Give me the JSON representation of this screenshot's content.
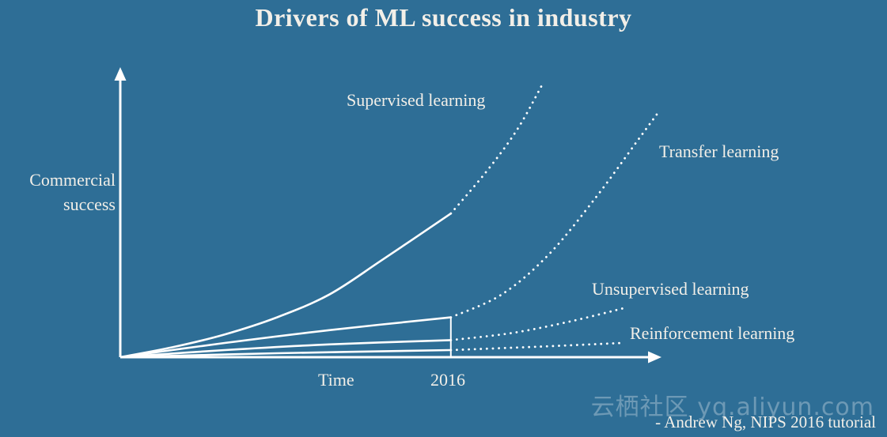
{
  "title": "Drivers of ML success in industry",
  "axes": {
    "x_label": "Time",
    "x_tick": "2016",
    "y_label": "Commercial success"
  },
  "attribution": "- Andrew Ng, NIPS 2016 tutorial",
  "watermark": "云栖社区 yq.aliyun.com",
  "colors": {
    "background": "#2e6e96",
    "text": "#f2efe8",
    "line": "#ffffff"
  },
  "chart_data": {
    "type": "line",
    "title": "Drivers of ML success in industry",
    "xlabel": "Time",
    "ylabel": "Commercial success",
    "x_tick_labels": [
      "2016"
    ],
    "x_tick_positions": [
      6.33
    ],
    "xlim": [
      0,
      10.3
    ],
    "ylim": [
      0,
      10
    ],
    "grid": false,
    "legend_position": "inline-labels",
    "note": "Conceptual sketch: solid = history up to 2016, dotted = projected after 2016; units are relative (0-10).",
    "series": [
      {
        "name": "Supervised learning",
        "id": "supervised-learning",
        "solid": [
          [
            0,
            0
          ],
          [
            1,
            0.35
          ],
          [
            2,
            0.8
          ],
          [
            3,
            1.4
          ],
          [
            4,
            2.2
          ],
          [
            5,
            3.4
          ],
          [
            6.33,
            5.05
          ]
        ],
        "dotted": [
          [
            6.33,
            5.05
          ],
          [
            7,
            6.5
          ],
          [
            7.6,
            8.0
          ],
          [
            8.1,
            9.65
          ]
        ]
      },
      {
        "name": "Transfer learning",
        "id": "transfer-learning",
        "solid": [
          [
            0,
            0
          ],
          [
            2,
            0.5
          ],
          [
            4,
            0.95
          ],
          [
            6.33,
            1.4
          ]
        ],
        "dotted": [
          [
            6.33,
            1.4
          ],
          [
            7.3,
            2.2
          ],
          [
            8.2,
            3.6
          ],
          [
            9.1,
            5.6
          ],
          [
            9.9,
            7.6
          ],
          [
            10.3,
            8.6
          ]
        ]
      },
      {
        "name": "Unsupervised learning",
        "id": "unsupervised-learning",
        "solid": [
          [
            0,
            0
          ],
          [
            2,
            0.25
          ],
          [
            4,
            0.45
          ],
          [
            6.33,
            0.6
          ]
        ],
        "dotted": [
          [
            6.33,
            0.6
          ],
          [
            7.5,
            0.85
          ],
          [
            8.6,
            1.25
          ],
          [
            9.7,
            1.75
          ]
        ]
      },
      {
        "name": "Reinforcement learning",
        "id": "reinforcement-learning",
        "solid": [
          [
            0,
            0
          ],
          [
            3,
            0.14
          ],
          [
            6.33,
            0.25
          ]
        ],
        "dotted": [
          [
            6.33,
            0.25
          ],
          [
            8,
            0.37
          ],
          [
            9.6,
            0.5
          ]
        ]
      }
    ]
  }
}
